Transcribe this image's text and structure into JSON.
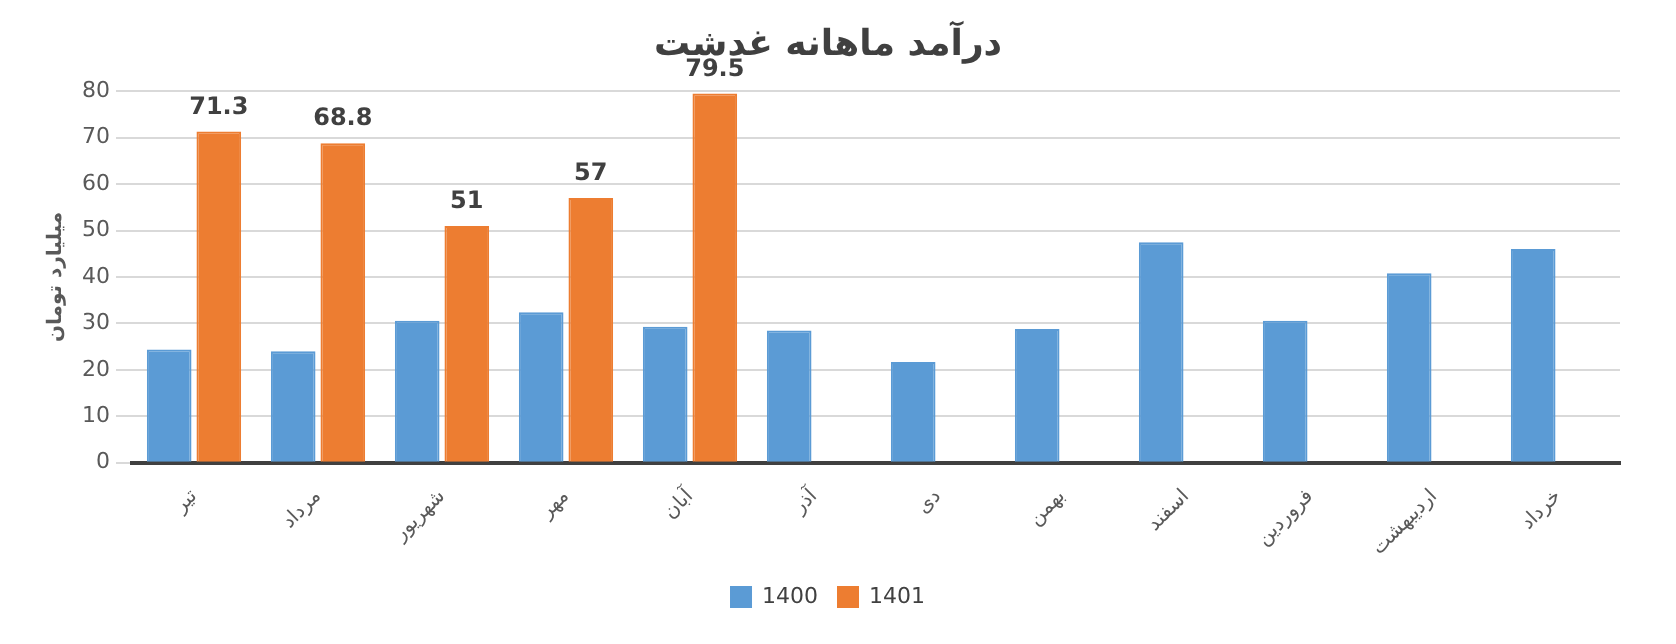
{
  "chart_data": {
    "type": "bar",
    "title": "درآمد ماهانه غدشت",
    "ylabel": "میلیارد تومان",
    "categories": [
      "تیر",
      "مرداد",
      "شهریور",
      "مهر",
      "آبان",
      "آذر",
      "دی",
      "بهمن",
      "اسفند",
      "فروردین",
      "اردیبهشت",
      "خرداد"
    ],
    "series": [
      {
        "name": "1400",
        "color": "#5b9bd5",
        "values": [
          24.4,
          24,
          30.6,
          32.4,
          29.3,
          28.5,
          21.7,
          28.8,
          47.5,
          30.6,
          40.8,
          46
        ]
      },
      {
        "name": "1401",
        "color": "#ed7d31",
        "values": [
          71.3,
          68.8,
          51,
          57,
          79.5,
          null,
          null,
          null,
          null,
          null,
          null,
          null
        ],
        "value_labels": [
          "71.3",
          "68.8",
          "51",
          "57",
          "79.5",
          null,
          null,
          null,
          null,
          null,
          null,
          null
        ]
      }
    ],
    "ylim": [
      0,
      80
    ],
    "yticks": [
      0,
      10,
      20,
      30,
      40,
      50,
      60,
      70,
      80
    ],
    "grid": "y",
    "legend": "bottom"
  }
}
